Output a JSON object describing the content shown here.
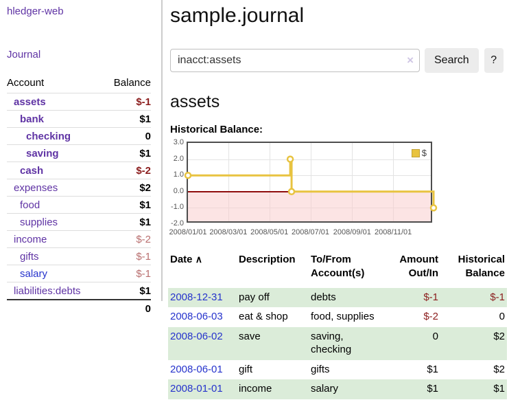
{
  "sidebar": {
    "app_title": "hledger-web",
    "journal_link": "Journal",
    "accounts": {
      "col_account": "Account",
      "col_balance": "Balance",
      "rows": [
        {
          "name": "assets",
          "balance": "$-1"
        },
        {
          "name": "bank",
          "balance": "$1"
        },
        {
          "name": "checking",
          "balance": "0"
        },
        {
          "name": "saving",
          "balance": "$1"
        },
        {
          "name": "cash",
          "balance": "$-2"
        },
        {
          "name": "expenses",
          "balance": "$2"
        },
        {
          "name": "food",
          "balance": "$1"
        },
        {
          "name": "supplies",
          "balance": "$1"
        },
        {
          "name": "income",
          "balance": "$-2"
        },
        {
          "name": "gifts",
          "balance": "$-1"
        },
        {
          "name": "salary",
          "balance": "$-1"
        },
        {
          "name": "liabilities:debts",
          "balance": "$1"
        }
      ],
      "total": "0"
    }
  },
  "main": {
    "title": "sample.journal",
    "search": {
      "value": "inacct:assets",
      "clear_icon": "×",
      "search_button": "Search",
      "help_button": "?"
    },
    "account_heading": "assets",
    "chart_title": "Historical Balance:"
  },
  "chart_data": {
    "type": "line",
    "style": "step",
    "title": "Historical Balance",
    "series": [
      {
        "name": "$",
        "color": "#e8c340",
        "points": [
          [
            "2008/01/01",
            1
          ],
          [
            "2008/06/01",
            2
          ],
          [
            "2008/06/03",
            0
          ],
          [
            "2008/12/31",
            -1
          ]
        ]
      }
    ],
    "x_range": [
      "2008/01/01",
      "2008/12/31"
    ],
    "x_ticks": [
      "2008/01/01",
      "2008/03/01",
      "2008/05/01",
      "2008/07/01",
      "2008/09/01",
      "2008/11/01"
    ],
    "y_ticks": [
      3.0,
      2.0,
      1.0,
      0.0,
      -1.0,
      -2.0
    ],
    "ylim": [
      -2,
      3
    ],
    "grid": true,
    "legend_position": "top-right",
    "negative_region_fill": "#fbe3e3",
    "zero_line_color": "#8f0d0d"
  },
  "register": {
    "headers": {
      "date": "Date",
      "sort_indicator": "∧",
      "description": "Description",
      "tofrom": "To/From Account(s)",
      "amount": "Amount Out/In",
      "balance": "Historical Balance"
    },
    "rows": [
      {
        "date": "2008-12-31",
        "description": "pay off",
        "accounts": "debts",
        "amount": "$-1",
        "balance": "$-1"
      },
      {
        "date": "2008-06-03",
        "description": "eat & shop",
        "accounts": "food, supplies",
        "amount": "$-2",
        "balance": "0"
      },
      {
        "date": "2008-06-02",
        "description": "save",
        "accounts": "saving, checking",
        "amount": "0",
        "balance": "$2"
      },
      {
        "date": "2008-06-01",
        "description": "gift",
        "accounts": "gifts",
        "amount": "$1",
        "balance": "$2"
      },
      {
        "date": "2008-01-01",
        "description": "income",
        "accounts": "salary",
        "amount": "$1",
        "balance": "$1"
      }
    ]
  },
  "colors": {
    "link_purple": "#5f33a4",
    "link_blue": "#2633cc",
    "negative_strong": "#8b1d1d",
    "negative_muted": "#b96f6f",
    "row_green": "#dbecd9",
    "chart_gold": "#e8c340"
  }
}
